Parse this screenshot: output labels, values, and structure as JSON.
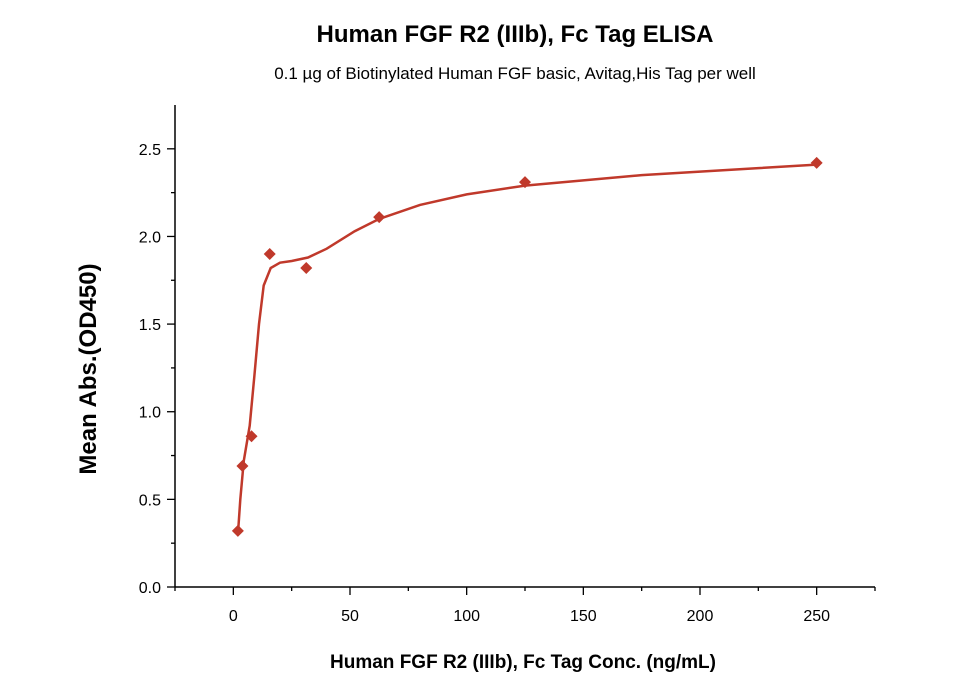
{
  "chart_data": {
    "type": "scatter",
    "title": "Human FGF R2 (IIIb), Fc Tag ELISA",
    "subtitle": "0.1 µg of Biotinylated Human FGF basic, Avitag,His Tag per well",
    "xlabel": "Human FGF R2 (IIIb), Fc Tag Conc. (ng/mL)",
    "ylabel": "Mean Abs.(OD450)",
    "xlim": [
      -25,
      275
    ],
    "ylim": [
      0,
      2.75
    ],
    "xticks": [
      "0",
      "50",
      "100",
      "150",
      "200",
      "250"
    ],
    "yticks": [
      "0.0",
      "0.5",
      "1.0",
      "1.5",
      "2.0",
      "2.5"
    ],
    "grid": false,
    "legend": "none",
    "series": [
      {
        "color": "#c0392b",
        "marker": "diamond",
        "points": [
          {
            "x": 1.95,
            "y": 0.32
          },
          {
            "x": 3.9,
            "y": 0.69
          },
          {
            "x": 7.8,
            "y": 0.86
          },
          {
            "x": 15.6,
            "y": 1.9
          },
          {
            "x": 31.25,
            "y": 1.82
          },
          {
            "x": 62.5,
            "y": 2.11
          },
          {
            "x": 125,
            "y": 2.31
          },
          {
            "x": 250,
            "y": 2.42
          }
        ],
        "fit_curve": [
          {
            "x": 1.95,
            "y": 0.3
          },
          {
            "x": 3.0,
            "y": 0.5
          },
          {
            "x": 4.5,
            "y": 0.72
          },
          {
            "x": 7.0,
            "y": 0.92
          },
          {
            "x": 9.0,
            "y": 1.2
          },
          {
            "x": 11.0,
            "y": 1.5
          },
          {
            "x": 13.0,
            "y": 1.72
          },
          {
            "x": 16.0,
            "y": 1.82
          },
          {
            "x": 20.0,
            "y": 1.85
          },
          {
            "x": 25.0,
            "y": 1.86
          },
          {
            "x": 32.0,
            "y": 1.88
          },
          {
            "x": 40.0,
            "y": 1.93
          },
          {
            "x": 52.0,
            "y": 2.03
          },
          {
            "x": 62.5,
            "y": 2.1
          },
          {
            "x": 80.0,
            "y": 2.18
          },
          {
            "x": 100.0,
            "y": 2.24
          },
          {
            "x": 125.0,
            "y": 2.29
          },
          {
            "x": 150.0,
            "y": 2.32
          },
          {
            "x": 175.0,
            "y": 2.35
          },
          {
            "x": 200.0,
            "y": 2.37
          },
          {
            "x": 225.0,
            "y": 2.39
          },
          {
            "x": 250.0,
            "y": 2.41
          }
        ]
      }
    ]
  }
}
